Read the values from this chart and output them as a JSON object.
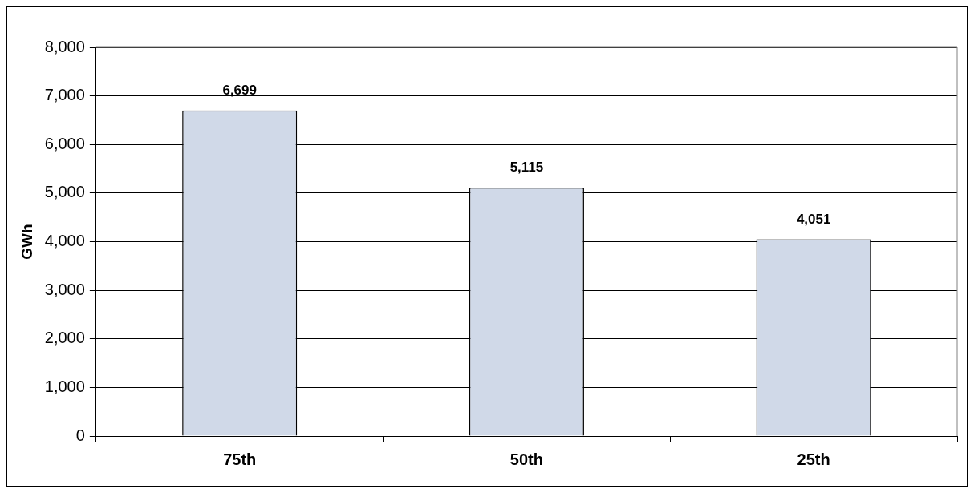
{
  "chart_data": {
    "type": "bar",
    "ylabel": "GWh",
    "categories": [
      "75th",
      "50th",
      "25th"
    ],
    "values": [
      6699,
      5115,
      4051
    ],
    "value_labels": [
      "6,699",
      "5,115",
      "4,051"
    ],
    "color": "#d0d9e8",
    "ylim": [
      0,
      8000
    ],
    "yticks": [
      {
        "value": 0,
        "label": "0"
      },
      {
        "value": 1000,
        "label": "1,000"
      },
      {
        "value": 2000,
        "label": "2,000"
      },
      {
        "value": 3000,
        "label": "3,000"
      },
      {
        "value": 4000,
        "label": "4,000"
      },
      {
        "value": 5000,
        "label": "5,000"
      },
      {
        "value": 6000,
        "label": "6,000"
      },
      {
        "value": 7000,
        "label": "7,000"
      },
      {
        "value": 8000,
        "label": "8,000"
      }
    ],
    "grid": "y",
    "legend": false
  }
}
